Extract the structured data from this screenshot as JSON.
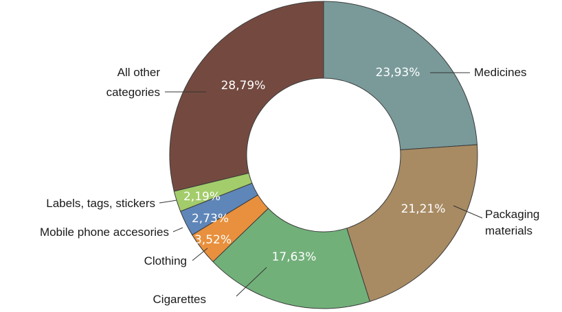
{
  "chart_data": {
    "type": "pie",
    "donut": true,
    "title": "",
    "legend": "none",
    "slices": [
      {
        "label": "Medicines",
        "label_lines": [
          "Medicines"
        ],
        "value": 23.93,
        "display": "23,93%",
        "color": "#7a9a9a"
      },
      {
        "label": "Packaging materials",
        "label_lines": [
          "Packaging",
          "materials"
        ],
        "value": 21.21,
        "display": "21,21%",
        "color": "#a88b63"
      },
      {
        "label": "Cigarettes",
        "label_lines": [
          "Cigarettes"
        ],
        "value": 17.63,
        "display": "17,63%",
        "color": "#72b07a"
      },
      {
        "label": "Clothing",
        "label_lines": [
          "Clothing"
        ],
        "value": 3.52,
        "display": "3,52%",
        "color": "#e8903d"
      },
      {
        "label": "Mobile phone accesories",
        "label_lines": [
          "Mobile phone accesories"
        ],
        "value": 2.73,
        "display": "2,73%",
        "color": "#5f86b8"
      },
      {
        "label": "Labels, tags, stickers",
        "label_lines": [
          "Labels, tags, stickers"
        ],
        "value": 2.19,
        "display": "2,19%",
        "color": "#a3cc6b"
      },
      {
        "label": "All other categories",
        "label_lines": [
          "All other",
          "categories"
        ],
        "value": 28.79,
        "display": "28,79%",
        "color": "#744a40"
      }
    ]
  }
}
